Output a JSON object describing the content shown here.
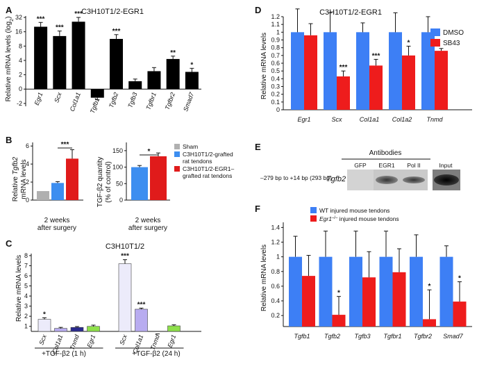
{
  "chart_data": [
    {
      "panel": "A",
      "type": "bar",
      "title": "C3H10T1/2-EGR1",
      "ylabel": "Relative mRNA levels (log2)",
      "yticks": [
        -2,
        0,
        2,
        4,
        8,
        16,
        32
      ],
      "categories": [
        "Egr1",
        "Scx",
        "Col1a1",
        "Tgfb1",
        "Tgfb2",
        "Tgfb3",
        "Tgfbr1",
        "Tgfbr2",
        "Smad7"
      ],
      "values": [
        4.35,
        3.7,
        4.7,
        -0.6,
        3.5,
        0.55,
        1.25,
        2.1,
        1.2
      ],
      "errors": [
        0.3,
        0.35,
        0.3,
        0.15,
        0.3,
        0.15,
        0.25,
        0.2,
        0.25
      ],
      "significance": [
        "***",
        "***",
        "***",
        "",
        "***",
        "",
        "",
        "**",
        "*"
      ],
      "color": "#000000"
    },
    {
      "panel": "B-left",
      "type": "bar",
      "ylabel": "Relative Tgfb2 mRNA levels",
      "yticks": [
        0,
        2,
        4,
        6
      ],
      "xlabel": "2 weeks after surgery",
      "categories": [
        "Sham",
        "C3H10T1/2-grafted rat tendons",
        "C3H10T1/2-EGR1–grafted rat tendons"
      ],
      "values": [
        1.0,
        1.9,
        4.6
      ],
      "errors": [
        0,
        0.15,
        1.0
      ],
      "significance_bracket": "***",
      "colors": [
        "#b0b0b0",
        "#3d8ef0",
        "#e01b1b"
      ]
    },
    {
      "panel": "B-right",
      "type": "bar",
      "ylabel": "TGF-β2 quantity (% of control)",
      "yticks": [
        0,
        50,
        100,
        150
      ],
      "xlabel": "2 weeks after surgery",
      "categories": [
        "C3H10T1/2-grafted rat tendons",
        "C3H10T1/2-EGR1–grafted rat tendons"
      ],
      "values": [
        100,
        133
      ],
      "errors": [
        5,
        10
      ],
      "significance_bracket": "*",
      "colors": [
        "#3d8ef0",
        "#e01b1b"
      ]
    },
    {
      "panel": "B-legend",
      "type": "bar",
      "legend": [
        {
          "name": "Sham",
          "color": "#b0b0b0"
        },
        {
          "name": "C3H10T1/2-grafted rat tendons",
          "color": "#3d8ef0"
        },
        {
          "name": "C3H10T1/2-EGR1–grafted rat tendons",
          "color": "#e01b1b"
        }
      ]
    },
    {
      "panel": "C",
      "type": "bar",
      "title": "C3H10T1/2",
      "ylabel": "Relative mRNA levels",
      "yticks": [
        1,
        2,
        3,
        4,
        5,
        6,
        7,
        8
      ],
      "groups": [
        {
          "label": "+TGF-β2 (1 h)",
          "categories": [
            "Scx",
            "Col1a1",
            "Tnmd",
            "Egr1"
          ],
          "values": [
            1.7,
            0.8,
            0.9,
            1.0
          ],
          "errors": [
            0.15,
            0.1,
            0.08,
            0.12
          ],
          "significance": [
            "*",
            "",
            "",
            ""
          ]
        },
        {
          "label": "+TGF-β2 (24 h)",
          "categories": [
            "Scx",
            "Col1a1",
            "Tnmd",
            "Egr1"
          ],
          "values": [
            7.2,
            2.7,
            0.2,
            1.05
          ],
          "errors": [
            0.4,
            0.1,
            0.05,
            0.1
          ],
          "significance": [
            "***",
            "***",
            "",
            ""
          ]
        }
      ],
      "colors": [
        "#ecebfa",
        "#b8acf0",
        "#2a2a8e",
        "#8ee04a"
      ]
    },
    {
      "panel": "D",
      "type": "bar",
      "title": "C3H10T1/2-EGR1",
      "ylabel": "Relative mRNA levels",
      "yticks": [
        0,
        0.1,
        0.2,
        0.3,
        0.4,
        0.5,
        0.6,
        0.7,
        0.8,
        0.9,
        1,
        1.1,
        1.2
      ],
      "categories": [
        "Egr1",
        "Scx",
        "Col1a1",
        "Col1a2",
        "Tnmd"
      ],
      "series": [
        {
          "name": "DMSO",
          "color": "#3d7ff5",
          "values": [
            1,
            1,
            1,
            1,
            1
          ],
          "errors": [
            0.3,
            0.25,
            0.12,
            0.25,
            0.2
          ]
        },
        {
          "name": "SB43",
          "color": "#ee1c1c",
          "values": [
            0.96,
            0.43,
            0.57,
            0.7,
            0.76
          ],
          "errors": [
            0.15,
            0.07,
            0.08,
            0.12,
            0.03
          ],
          "significance": [
            "",
            "***",
            "***",
            "*",
            ""
          ]
        }
      ]
    },
    {
      "panel": "E",
      "type": "gel",
      "header": "Antibodies",
      "row_label": "–279 bp to +14 bp (293 bp)",
      "gene": "Tgfb2",
      "lanes": [
        "GFP",
        "EGR1",
        "Pol II",
        "Input"
      ]
    },
    {
      "panel": "F",
      "type": "bar",
      "ylabel": "Relative mRNA levels",
      "yticks": [
        0.2,
        0.4,
        0.6,
        0.8,
        1,
        1.2,
        1.4
      ],
      "categories": [
        "Tgfb1",
        "Tgfb2",
        "Tgfb3",
        "Tgfbr1",
        "Tgfbr2",
        "Smad7"
      ],
      "series": [
        {
          "name": "WT injured mouse tendons",
          "color": "#3d7ff5",
          "values": [
            1,
            1,
            1,
            1,
            1,
            1
          ],
          "errors": [
            0.28,
            0.35,
            0.35,
            0.35,
            0.3,
            0.15
          ]
        },
        {
          "name": "Egr1–/– injured mouse tendons",
          "color": "#ee1c1c",
          "values": [
            0.74,
            0.21,
            0.72,
            0.79,
            0.15,
            0.39
          ],
          "errors": [
            0.28,
            0.25,
            0.35,
            0.32,
            0.4,
            0.27
          ],
          "significance": [
            "",
            "*",
            "",
            "",
            "*",
            "*"
          ]
        }
      ]
    }
  ],
  "labels": {
    "panelA": "A",
    "panelB": "B",
    "panelC": "C",
    "panelD": "D",
    "panelE": "E",
    "panelF": "F",
    "titleA": "C3H10T1/2-EGR1",
    "titleC": "C3H10T1/2",
    "titleD": "C3H10T1/2-EGR1",
    "yA": "Relative mRNA levels (log",
    "yA_sub": "2",
    "yA_end": ")",
    "yB1": "Relative ",
    "yB1_gene": "Tgfb2",
    "yB1_line2": "mRNA levels",
    "yB2a": "TGF-β2 quantity",
    "yB2b": "(% of control)",
    "xB_line1": "2 weeks",
    "xB_line2": "after surgery",
    "yC": "Relative mRNA levels",
    "yD": "Relative mRNA levels",
    "yF": "Relative mRNA levels",
    "legB": [
      "Sham",
      "C3H10T1/2-grafted",
      "rat tendons",
      "C3H10T1/2-EGR1–",
      "grafted rat tendons"
    ],
    "legD": [
      "DMSO",
      "SB43"
    ],
    "legF1": "WT injured mouse tendons",
    "legF2_gene": "Egr1",
    "legF2_sup": "–/–",
    "legF2_rest": " injured mouse tendons",
    "eHeader": "Antibodies",
    "eRow": "–279 bp to +14 bp (293 bp)",
    "eGene": "Tgfb2",
    "eLanes": [
      "GFP",
      "EGR1",
      "Pol II",
      "Input"
    ],
    "cGroup1": "+TGF-β2 (1 h)",
    "cGroup2": "+TGF-β2 (24 h)"
  }
}
